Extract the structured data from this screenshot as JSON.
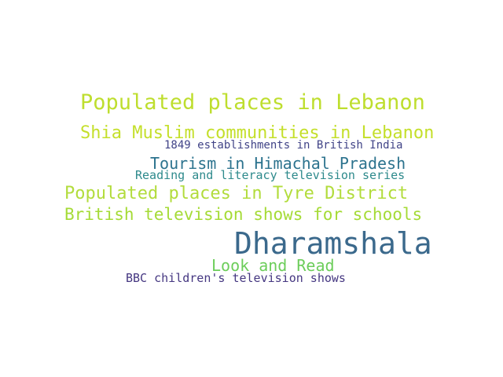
{
  "words": [
    {
      "text": "Populated places in Lebanon",
      "color": "#bede2e"
    },
    {
      "text": "Shia Muslim communities in Lebanon",
      "color": "#c4df2a"
    },
    {
      "text": "1849 establishments in British India",
      "color": "#414487"
    },
    {
      "text": "Tourism in Himachal Pradesh",
      "color": "#2c738e"
    },
    {
      "text": "Reading and literacy television series",
      "color": "#2e8a8c"
    },
    {
      "text": "Populated places in Tyre District",
      "color": "#b2dc3c"
    },
    {
      "text": "British television shows for schools",
      "color": "#a5db36"
    },
    {
      "text": "Dharamshala",
      "color": "#3b698c"
    },
    {
      "text": "Look and Read",
      "color": "#6ccd5a"
    },
    {
      "text": "BBC children's television shows",
      "color": "#453781"
    }
  ]
}
